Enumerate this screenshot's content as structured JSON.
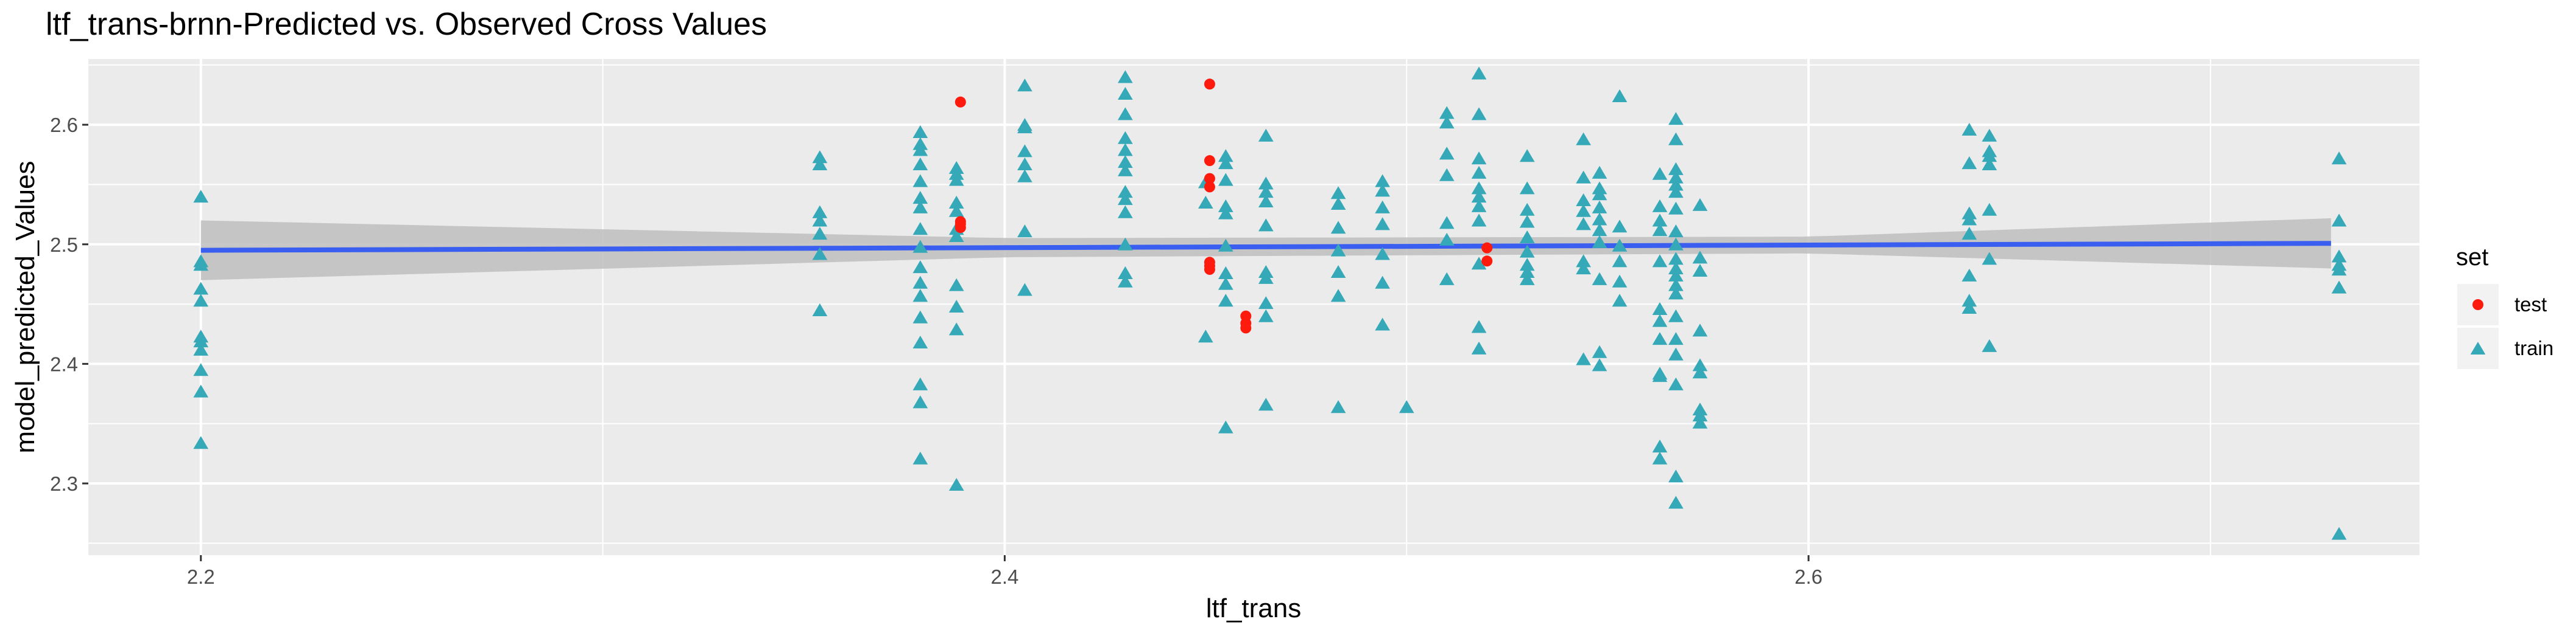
{
  "chart_data": {
    "type": "scatter",
    "title": "ltf_trans-brnn-Predicted vs. Observed Cross Values",
    "xlabel": "ltf_trans",
    "ylabel": "model_predicted_Values",
    "xlim": [
      2.172,
      2.752
    ],
    "ylim": [
      2.24,
      2.655
    ],
    "x_ticks": [
      2.2,
      2.4,
      2.6
    ],
    "x_tick_labels": [
      "2.2",
      "2.4",
      "2.6"
    ],
    "y_ticks": [
      2.3,
      2.4,
      2.5,
      2.6
    ],
    "y_tick_labels": [
      "2.3",
      "2.4",
      "2.5",
      "2.6"
    ],
    "grid": true,
    "legend": {
      "title": "set",
      "position": "right"
    },
    "colors": {
      "panel": "#ebebeb",
      "grid": "#ffffff",
      "test": "#f8766d",
      "train": "#00bfc4",
      "test_point": "#ff1a0e",
      "train_point": "#36a9b8",
      "fit": "#3a5ef0",
      "band": "#bebebe"
    },
    "fit": {
      "method": "lm",
      "x": [
        2.2,
        2.4,
        2.6,
        2.73
      ],
      "y": [
        2.495,
        2.4972,
        2.4994,
        2.5008
      ],
      "ci_half_width": [
        0.025,
        0.008,
        0.007,
        0.021
      ]
    },
    "series": [
      {
        "name": "test",
        "marker": "circle",
        "points": [
          [
            2.389,
            2.619
          ],
          [
            2.389,
            2.519
          ],
          [
            2.389,
            2.517
          ],
          [
            2.389,
            2.514
          ],
          [
            2.451,
            2.634
          ],
          [
            2.451,
            2.57
          ],
          [
            2.451,
            2.555
          ],
          [
            2.451,
            2.548
          ],
          [
            2.451,
            2.485
          ],
          [
            2.451,
            2.482
          ],
          [
            2.451,
            2.479
          ],
          [
            2.46,
            2.44
          ],
          [
            2.46,
            2.434
          ],
          [
            2.46,
            2.43
          ],
          [
            2.52,
            2.497
          ],
          [
            2.52,
            2.486
          ]
        ]
      },
      {
        "name": "train",
        "marker": "triangle",
        "points": [
          [
            2.2,
            2.539
          ],
          [
            2.2,
            2.485
          ],
          [
            2.2,
            2.482
          ],
          [
            2.2,
            2.462
          ],
          [
            2.2,
            2.452
          ],
          [
            2.2,
            2.422
          ],
          [
            2.2,
            2.418
          ],
          [
            2.2,
            2.411
          ],
          [
            2.2,
            2.394
          ],
          [
            2.2,
            2.376
          ],
          [
            2.2,
            2.333
          ],
          [
            2.354,
            2.572
          ],
          [
            2.354,
            2.566
          ],
          [
            2.354,
            2.526
          ],
          [
            2.354,
            2.519
          ],
          [
            2.354,
            2.508
          ],
          [
            2.354,
            2.491
          ],
          [
            2.354,
            2.444
          ],
          [
            2.379,
            2.593
          ],
          [
            2.379,
            2.583
          ],
          [
            2.379,
            2.578
          ],
          [
            2.379,
            2.566
          ],
          [
            2.379,
            2.552
          ],
          [
            2.379,
            2.538
          ],
          [
            2.379,
            2.53
          ],
          [
            2.379,
            2.512
          ],
          [
            2.379,
            2.497
          ],
          [
            2.379,
            2.48
          ],
          [
            2.379,
            2.467
          ],
          [
            2.379,
            2.456
          ],
          [
            2.379,
            2.438
          ],
          [
            2.379,
            2.417
          ],
          [
            2.379,
            2.382
          ],
          [
            2.379,
            2.367
          ],
          [
            2.379,
            2.32
          ],
          [
            2.388,
            2.563
          ],
          [
            2.388,
            2.558
          ],
          [
            2.388,
            2.553
          ],
          [
            2.388,
            2.534
          ],
          [
            2.388,
            2.527
          ],
          [
            2.388,
            2.512
          ],
          [
            2.388,
            2.506
          ],
          [
            2.388,
            2.465
          ],
          [
            2.388,
            2.447
          ],
          [
            2.388,
            2.428
          ],
          [
            2.388,
            2.298
          ],
          [
            2.405,
            2.632
          ],
          [
            2.405,
            2.599
          ],
          [
            2.405,
            2.597
          ],
          [
            2.405,
            2.577
          ],
          [
            2.405,
            2.566
          ],
          [
            2.405,
            2.556
          ],
          [
            2.405,
            2.51
          ],
          [
            2.405,
            2.461
          ],
          [
            2.43,
            2.639
          ],
          [
            2.43,
            2.625
          ],
          [
            2.43,
            2.608
          ],
          [
            2.43,
            2.588
          ],
          [
            2.43,
            2.578
          ],
          [
            2.43,
            2.568
          ],
          [
            2.43,
            2.561
          ],
          [
            2.43,
            2.543
          ],
          [
            2.43,
            2.537
          ],
          [
            2.43,
            2.526
          ],
          [
            2.43,
            2.499
          ],
          [
            2.43,
            2.475
          ],
          [
            2.43,
            2.468
          ],
          [
            2.45,
            2.551
          ],
          [
            2.45,
            2.534
          ],
          [
            2.45,
            2.422
          ],
          [
            2.455,
            2.573
          ],
          [
            2.455,
            2.567
          ],
          [
            2.455,
            2.553
          ],
          [
            2.455,
            2.531
          ],
          [
            2.455,
            2.525
          ],
          [
            2.455,
            2.498
          ],
          [
            2.455,
            2.475
          ],
          [
            2.455,
            2.466
          ],
          [
            2.455,
            2.452
          ],
          [
            2.455,
            2.346
          ],
          [
            2.465,
            2.59
          ],
          [
            2.465,
            2.55
          ],
          [
            2.465,
            2.543
          ],
          [
            2.465,
            2.535
          ],
          [
            2.465,
            2.515
          ],
          [
            2.465,
            2.476
          ],
          [
            2.465,
            2.471
          ],
          [
            2.465,
            2.45
          ],
          [
            2.465,
            2.439
          ],
          [
            2.465,
            2.365
          ],
          [
            2.483,
            2.542
          ],
          [
            2.483,
            2.533
          ],
          [
            2.483,
            2.513
          ],
          [
            2.483,
            2.494
          ],
          [
            2.483,
            2.476
          ],
          [
            2.483,
            2.456
          ],
          [
            2.483,
            2.363
          ],
          [
            2.494,
            2.552
          ],
          [
            2.494,
            2.544
          ],
          [
            2.494,
            2.53
          ],
          [
            2.494,
            2.516
          ],
          [
            2.494,
            2.491
          ],
          [
            2.494,
            2.467
          ],
          [
            2.494,
            2.432
          ],
          [
            2.5,
            2.363
          ],
          [
            2.51,
            2.609
          ],
          [
            2.51,
            2.601
          ],
          [
            2.51,
            2.575
          ],
          [
            2.51,
            2.557
          ],
          [
            2.51,
            2.517
          ],
          [
            2.51,
            2.503
          ],
          [
            2.51,
            2.47
          ],
          [
            2.518,
            2.642
          ],
          [
            2.518,
            2.608
          ],
          [
            2.518,
            2.571
          ],
          [
            2.518,
            2.559
          ],
          [
            2.518,
            2.546
          ],
          [
            2.518,
            2.539
          ],
          [
            2.518,
            2.531
          ],
          [
            2.518,
            2.519
          ],
          [
            2.518,
            2.483
          ],
          [
            2.518,
            2.43
          ],
          [
            2.518,
            2.412
          ],
          [
            2.53,
            2.573
          ],
          [
            2.53,
            2.546
          ],
          [
            2.53,
            2.528
          ],
          [
            2.53,
            2.518
          ],
          [
            2.53,
            2.505
          ],
          [
            2.53,
            2.493
          ],
          [
            2.53,
            2.482
          ],
          [
            2.53,
            2.476
          ],
          [
            2.53,
            2.47
          ],
          [
            2.544,
            2.587
          ],
          [
            2.544,
            2.555
          ],
          [
            2.544,
            2.536
          ],
          [
            2.544,
            2.527
          ],
          [
            2.544,
            2.516
          ],
          [
            2.544,
            2.485
          ],
          [
            2.544,
            2.479
          ],
          [
            2.544,
            2.403
          ],
          [
            2.548,
            2.559
          ],
          [
            2.548,
            2.546
          ],
          [
            2.548,
            2.541
          ],
          [
            2.548,
            2.53
          ],
          [
            2.548,
            2.52
          ],
          [
            2.548,
            2.511
          ],
          [
            2.548,
            2.501
          ],
          [
            2.548,
            2.47
          ],
          [
            2.548,
            2.409
          ],
          [
            2.548,
            2.398
          ],
          [
            2.553,
            2.623
          ],
          [
            2.553,
            2.514
          ],
          [
            2.553,
            2.498
          ],
          [
            2.553,
            2.485
          ],
          [
            2.553,
            2.468
          ],
          [
            2.553,
            2.452
          ],
          [
            2.563,
            2.558
          ],
          [
            2.563,
            2.531
          ],
          [
            2.563,
            2.519
          ],
          [
            2.563,
            2.511
          ],
          [
            2.563,
            2.485
          ],
          [
            2.563,
            2.445
          ],
          [
            2.563,
            2.435
          ],
          [
            2.563,
            2.42
          ],
          [
            2.563,
            2.391
          ],
          [
            2.563,
            2.389
          ],
          [
            2.563,
            2.33
          ],
          [
            2.563,
            2.32
          ],
          [
            2.567,
            2.604
          ],
          [
            2.567,
            2.587
          ],
          [
            2.567,
            2.562
          ],
          [
            2.567,
            2.555
          ],
          [
            2.567,
            2.549
          ],
          [
            2.567,
            2.543
          ],
          [
            2.567,
            2.529
          ],
          [
            2.567,
            2.51
          ],
          [
            2.567,
            2.499
          ],
          [
            2.567,
            2.487
          ],
          [
            2.567,
            2.479
          ],
          [
            2.567,
            2.473
          ],
          [
            2.567,
            2.465
          ],
          [
            2.567,
            2.458
          ],
          [
            2.567,
            2.439
          ],
          [
            2.567,
            2.42
          ],
          [
            2.567,
            2.407
          ],
          [
            2.567,
            2.382
          ],
          [
            2.567,
            2.305
          ],
          [
            2.567,
            2.283
          ],
          [
            2.573,
            2.532
          ],
          [
            2.573,
            2.488
          ],
          [
            2.573,
            2.477
          ],
          [
            2.573,
            2.427
          ],
          [
            2.573,
            2.398
          ],
          [
            2.573,
            2.392
          ],
          [
            2.573,
            2.361
          ],
          [
            2.573,
            2.356
          ],
          [
            2.573,
            2.35
          ],
          [
            2.64,
            2.595
          ],
          [
            2.64,
            2.567
          ],
          [
            2.64,
            2.525
          ],
          [
            2.64,
            2.52
          ],
          [
            2.64,
            2.508
          ],
          [
            2.64,
            2.473
          ],
          [
            2.64,
            2.452
          ],
          [
            2.64,
            2.446
          ],
          [
            2.645,
            2.59
          ],
          [
            2.645,
            2.577
          ],
          [
            2.645,
            2.573
          ],
          [
            2.645,
            2.566
          ],
          [
            2.645,
            2.528
          ],
          [
            2.645,
            2.487
          ],
          [
            2.645,
            2.414
          ],
          [
            2.732,
            2.571
          ],
          [
            2.732,
            2.519
          ],
          [
            2.732,
            2.489
          ],
          [
            2.732,
            2.482
          ],
          [
            2.732,
            2.478
          ],
          [
            2.732,
            2.463
          ],
          [
            2.732,
            2.257
          ]
        ]
      }
    ]
  }
}
